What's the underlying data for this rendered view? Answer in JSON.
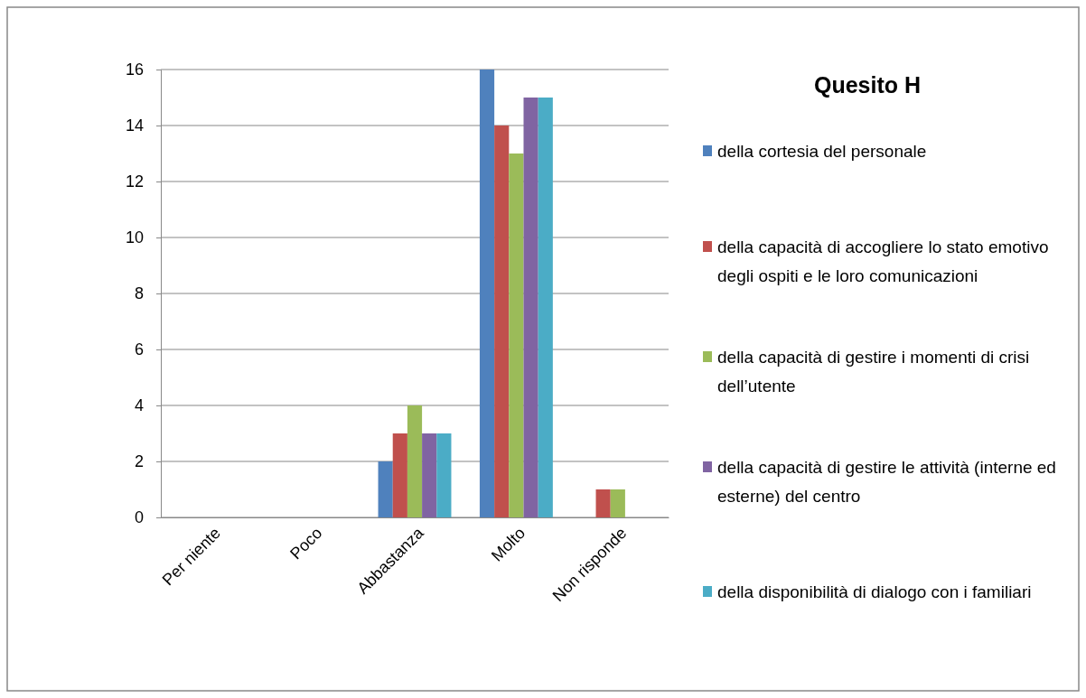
{
  "chart_data": {
    "type": "bar",
    "title": "Quesito H",
    "categories": [
      "Per niente",
      "Poco",
      "Abbastanza",
      "Molto",
      "Non risponde"
    ],
    "series": [
      {
        "name": "della cortesia del personale",
        "color": "#4f81bd",
        "values": [
          0,
          0,
          2,
          16,
          0
        ]
      },
      {
        "name": "della capacità di accogliere lo stato emotivo degli ospiti e le loro comunicazioni",
        "color": "#c0504d",
        "values": [
          0,
          0,
          3,
          14,
          1
        ]
      },
      {
        "name": "della capacità di gestire i momenti di crisi dell’utente",
        "color": "#9bbb59",
        "values": [
          0,
          0,
          4,
          13,
          1
        ]
      },
      {
        "name": "della capacità di gestire le attività (interne ed esterne) del centro",
        "color": "#8064a2",
        "values": [
          0,
          0,
          3,
          15,
          0
        ]
      },
      {
        "name": "della disponibilità di dialogo con i familiari",
        "color": "#4bacc6",
        "values": [
          0,
          0,
          3,
          15,
          0
        ]
      }
    ],
    "ylim": [
      0,
      16
    ],
    "yticks": [
      0,
      2,
      4,
      6,
      8,
      10,
      12,
      14,
      16
    ],
    "grid": "y",
    "legend": "right"
  }
}
